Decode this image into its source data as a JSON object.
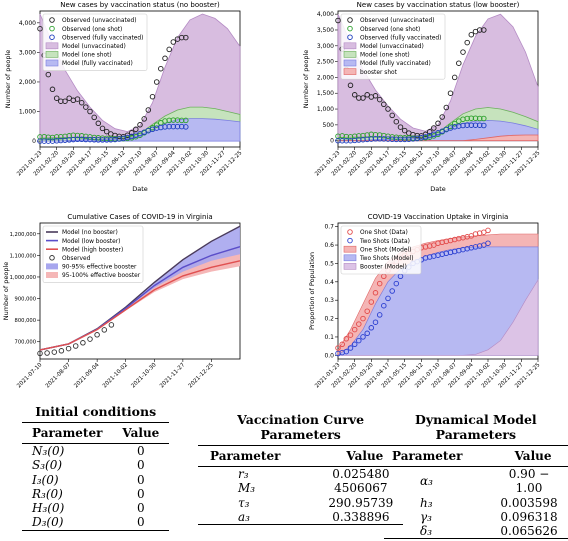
{
  "chart_data": [
    {
      "type": "line",
      "title": "New cases by vaccination status (no booster)",
      "xlabel": "Date",
      "ylabel": "Number of people",
      "ylim": [
        -200,
        4400
      ],
      "yticks": [
        0,
        1000,
        2000,
        3000,
        4000
      ],
      "ytick_labels": [
        "0",
        "1,000",
        "2,000",
        "3,000",
        "4,000"
      ],
      "xticks": [
        "2021-01-23",
        "2021-02-20",
        "2021-03-20",
        "2021-04-17",
        "2021-05-15",
        "2021-06-12",
        "2021-07-10",
        "2021-08-07",
        "2021-09-04",
        "2021-10-02",
        "2021-10-30",
        "2021-11-27",
        "2021-12-25"
      ],
      "legend_position": "top-left",
      "legend": [
        "Observed (unvaccinated)",
        "Observed (one shot)",
        "Observed (fully vaccinated)",
        "Model (unvaccinated)",
        "Model (one shot)",
        "Model (fully vaccinated)"
      ],
      "model_weeks": [
        0,
        3,
        6,
        9,
        12,
        15,
        18,
        21,
        24,
        27,
        30,
        33,
        36,
        39,
        42,
        45,
        48
      ],
      "model_unvaccinated": [
        4300,
        3300,
        2400,
        1700,
        1150,
        700,
        420,
        320,
        520,
        1300,
        2500,
        3500,
        4100,
        4300,
        4150,
        3800,
        3200
      ],
      "model_one_shot": [
        100,
        110,
        115,
        120,
        120,
        110,
        100,
        110,
        260,
        560,
        850,
        1050,
        1150,
        1150,
        1100,
        1000,
        900
      ],
      "model_fully_vaccinated": [
        0,
        0,
        10,
        30,
        50,
        60,
        65,
        80,
        200,
        400,
        600,
        720,
        760,
        760,
        740,
        700,
        650
      ],
      "obs_weeks": [
        0,
        1,
        2,
        3,
        4,
        5,
        6,
        7,
        8,
        9,
        10,
        11,
        12,
        13,
        14,
        15,
        16,
        17,
        18,
        19,
        20,
        21,
        22,
        23,
        24,
        25,
        26,
        27,
        28,
        29,
        30,
        31,
        32,
        33,
        34,
        35
      ],
      "obs_unvaccinated": [
        3800,
        2900,
        2250,
        1750,
        1450,
        1350,
        1350,
        1450,
        1380,
        1420,
        1300,
        1150,
        1000,
        800,
        600,
        430,
        320,
        240,
        190,
        160,
        150,
        200,
        280,
        400,
        550,
        750,
        1050,
        1500,
        2000,
        2450,
        2800,
        3100,
        3350,
        3450,
        3500,
        3500
      ],
      "obs_one_shot": [
        140,
        150,
        130,
        120,
        140,
        150,
        160,
        180,
        200,
        190,
        180,
        160,
        140,
        120,
        110,
        100,
        90,
        90,
        80,
        80,
        80,
        90,
        110,
        150,
        200,
        280,
        360,
        450,
        540,
        620,
        680,
        700,
        710,
        710,
        700,
        700
      ],
      "obs_fully_vaccinated": [
        0,
        0,
        0,
        0,
        10,
        20,
        30,
        40,
        50,
        60,
        60,
        55,
        50,
        45,
        40,
        40,
        40,
        45,
        55,
        70,
        90,
        120,
        160,
        200,
        250,
        300,
        350,
        400,
        440,
        460,
        480,
        490,
        490,
        490,
        490,
        480
      ]
    },
    {
      "type": "line",
      "title": "New cases by vaccination status (low booster)",
      "xlabel": "Date",
      "ylabel": "Number of people",
      "ylim": [
        -200,
        4100
      ],
      "yticks": [
        0,
        500,
        1000,
        1500,
        2000,
        2500,
        3000,
        3500,
        4000
      ],
      "ytick_labels": [
        "0",
        "500",
        "1,000",
        "1,500",
        "2,000",
        "2,500",
        "3,000",
        "3,500",
        "4,000"
      ],
      "xticks": [
        "2021-01-23",
        "2021-02-20",
        "2021-03-20",
        "2021-04-17",
        "2021-05-15",
        "2021-06-12",
        "2021-07-10",
        "2021-08-07",
        "2021-09-04",
        "2021-10-02",
        "2021-10-30",
        "2021-11-27",
        "2021-12-25"
      ],
      "legend_position": "top-left",
      "legend": [
        "Observed (unvaccinated)",
        "Observed (one shot)",
        "Observed (fully vaccinated)",
        "Model (unvaccinated)",
        "Model (one shot)",
        "Model (fully vaccinated)",
        "booster shot"
      ],
      "model_weeks": [
        0,
        3,
        6,
        9,
        12,
        15,
        18,
        21,
        24,
        27,
        30,
        33,
        36,
        39,
        42,
        45,
        48
      ],
      "model_unvaccinated": [
        4000,
        3100,
        2250,
        1600,
        1100,
        680,
        400,
        300,
        500,
        1250,
        2400,
        3300,
        3850,
        4000,
        3600,
        2800,
        1700
      ],
      "model_one_shot": [
        100,
        110,
        115,
        120,
        120,
        110,
        100,
        110,
        260,
        560,
        850,
        1000,
        1050,
        1000,
        900,
        760,
        600
      ],
      "model_fully_vaccinated": [
        0,
        0,
        10,
        30,
        50,
        60,
        65,
        80,
        200,
        400,
        550,
        620,
        640,
        620,
        560,
        470,
        360
      ],
      "model_booster": [
        0,
        0,
        0,
        0,
        0,
        0,
        0,
        0,
        0,
        0,
        0,
        40,
        90,
        140,
        170,
        180,
        180
      ],
      "obs_weeks": [
        0,
        1,
        2,
        3,
        4,
        5,
        6,
        7,
        8,
        9,
        10,
        11,
        12,
        13,
        14,
        15,
        16,
        17,
        18,
        19,
        20,
        21,
        22,
        23,
        24,
        25,
        26,
        27,
        28,
        29,
        30,
        31,
        32,
        33,
        34,
        35
      ],
      "obs_unvaccinated": [
        3800,
        2900,
        2250,
        1750,
        1450,
        1350,
        1350,
        1450,
        1380,
        1420,
        1300,
        1150,
        1000,
        800,
        600,
        430,
        320,
        240,
        190,
        160,
        150,
        200,
        280,
        400,
        550,
        750,
        1050,
        1500,
        2000,
        2450,
        2800,
        3100,
        3350,
        3450,
        3500,
        3500
      ],
      "obs_one_shot": [
        140,
        150,
        130,
        120,
        140,
        150,
        160,
        180,
        200,
        190,
        180,
        160,
        140,
        120,
        110,
        100,
        90,
        90,
        80,
        80,
        80,
        90,
        110,
        150,
        200,
        280,
        360,
        450,
        540,
        620,
        680,
        700,
        710,
        710,
        700,
        700
      ],
      "obs_fully_vaccinated": [
        0,
        0,
        0,
        0,
        10,
        20,
        30,
        40,
        50,
        60,
        60,
        55,
        50,
        45,
        40,
        40,
        40,
        45,
        55,
        70,
        90,
        120,
        160,
        200,
        250,
        300,
        350,
        400,
        440,
        460,
        480,
        490,
        490,
        490,
        490,
        480
      ]
    },
    {
      "type": "line",
      "title": "Cumulative Cases of COVID-19 in Virginia",
      "xlabel": "",
      "ylabel": "Number of people",
      "ylim": [
        620000,
        1250000
      ],
      "yticks": [
        700000,
        800000,
        900000,
        1000000,
        1100000,
        1200000
      ],
      "ytick_labels": [
        "700,000",
        "800,000",
        "900,000",
        "1,000,000",
        "1,100,000",
        "1,200,000"
      ],
      "xticks": [
        "2021-07-10",
        "2021-08-07",
        "2021-09-04",
        "2021-10-02",
        "2021-10-30",
        "2021-11-27",
        "2021-12-25"
      ],
      "legend_position": "top-left",
      "legend": [
        "Model (no booster)",
        "Model (low booster)",
        "Model (high booster)",
        "Observed",
        "90-95% effective booster",
        "95-100% effective booster"
      ],
      "weeks": [
        0,
        4,
        8,
        12,
        16,
        20,
        24,
        28
      ],
      "model_no_booster": [
        662000,
        690000,
        760000,
        860000,
        975000,
        1080000,
        1165000,
        1235000
      ],
      "model_low_booster": [
        662000,
        690000,
        758000,
        855000,
        960000,
        1045000,
        1100000,
        1140000
      ],
      "model_high_booster": [
        662000,
        690000,
        756000,
        848000,
        940000,
        1005000,
        1045000,
        1075000
      ],
      "band_90_95_low": [
        662000,
        690000,
        757000,
        852000,
        950000,
        1025000,
        1075000,
        1105000
      ],
      "band_95_100_low": [
        662000,
        689000,
        754000,
        844000,
        930000,
        990000,
        1025000,
        1050000
      ],
      "obs_weeks": [
        0,
        1,
        2,
        3,
        4,
        5,
        6,
        7,
        8,
        9,
        10
      ],
      "observed": [
        646000,
        648000,
        652000,
        658000,
        668000,
        680000,
        695000,
        712000,
        732000,
        755000,
        778000
      ]
    },
    {
      "type": "line",
      "title": "COVID-19 Vaccination Uptake in Virginia",
      "xlabel": "",
      "ylabel": "Proportion of Population",
      "ylim": [
        -0.02,
        0.72
      ],
      "yticks": [
        0.0,
        0.1,
        0.2,
        0.3,
        0.4,
        0.5,
        0.6,
        0.7
      ],
      "ytick_labels": [
        "0.0",
        "0.1",
        "0.2",
        "0.3",
        "0.4",
        "0.5",
        "0.6",
        "0.7"
      ],
      "xticks": [
        "2021-01-23",
        "2021-02-20",
        "2021-03-20",
        "2021-04-17",
        "2021-05-15",
        "2021-06-12",
        "2021-07-10",
        "2021-08-07",
        "2021-09-04",
        "2021-10-02",
        "2021-10-30",
        "2021-11-27",
        "2021-12-25"
      ],
      "legend_position": "top-left",
      "legend": [
        "One Shot (Data)",
        "Two Shots (Data)",
        "One Shot (Model)",
        "Two Shots (Model)",
        "Booster (Model)"
      ],
      "model_weeks": [
        0,
        3,
        6,
        9,
        12,
        15,
        18,
        21,
        24,
        27,
        30,
        33,
        36,
        39,
        42,
        45,
        48
      ],
      "model_one_shot": [
        0.03,
        0.14,
        0.28,
        0.42,
        0.51,
        0.56,
        0.59,
        0.61,
        0.625,
        0.635,
        0.645,
        0.65,
        0.655,
        0.66,
        0.66,
        0.66,
        0.66
      ],
      "model_two_shots": [
        0.0,
        0.05,
        0.14,
        0.28,
        0.4,
        0.47,
        0.51,
        0.54,
        0.56,
        0.575,
        0.585,
        0.59,
        0.59,
        0.59,
        0.59,
        0.59,
        0.59
      ],
      "model_booster": [
        0,
        0,
        0,
        0,
        0,
        0,
        0,
        0,
        0,
        0,
        0,
        0.005,
        0.03,
        0.08,
        0.18,
        0.3,
        0.41
      ],
      "obs_weeks": [
        0,
        1,
        2,
        3,
        4,
        5,
        6,
        7,
        8,
        9,
        10,
        11,
        12,
        13,
        14,
        15,
        16,
        17,
        18,
        19,
        20,
        21,
        22,
        23,
        24,
        25,
        26,
        27,
        28,
        29,
        30,
        31,
        32,
        33,
        34,
        35,
        36
      ],
      "obs_one_shot": [
        0.04,
        0.06,
        0.09,
        0.11,
        0.14,
        0.17,
        0.2,
        0.24,
        0.29,
        0.34,
        0.39,
        0.43,
        0.46,
        0.49,
        0.51,
        0.53,
        0.545,
        0.555,
        0.565,
        0.575,
        0.585,
        0.59,
        0.595,
        0.6,
        0.61,
        0.615,
        0.62,
        0.625,
        0.63,
        0.635,
        0.64,
        0.645,
        0.65,
        0.66,
        0.665,
        0.67,
        0.68
      ],
      "obs_two_shots": [
        0.01,
        0.015,
        0.02,
        0.04,
        0.06,
        0.08,
        0.1,
        0.12,
        0.15,
        0.18,
        0.22,
        0.27,
        0.31,
        0.35,
        0.39,
        0.43,
        0.46,
        0.48,
        0.5,
        0.51,
        0.52,
        0.53,
        0.535,
        0.54,
        0.545,
        0.55,
        0.555,
        0.56,
        0.565,
        0.57,
        0.575,
        0.58,
        0.585,
        0.59,
        0.595,
        0.6,
        0.61
      ]
    }
  ],
  "tables": {
    "initial": {
      "caption": "Initial conditions",
      "headers": [
        "Parameter",
        "Value"
      ],
      "rows": [
        [
          "N₃(0)",
          "0"
        ],
        [
          "S₃(0)",
          "0"
        ],
        [
          "I₃(0)",
          "0"
        ],
        [
          "R₃(0)",
          "0"
        ],
        [
          "H₃(0)",
          "0"
        ],
        [
          "D₃(0)",
          "0"
        ]
      ]
    },
    "vaccination": {
      "caption_line1": "Vaccination Curve",
      "caption_line2": "Parameters",
      "headers": [
        "Parameter",
        "Value"
      ],
      "rows": [
        [
          "r₃",
          "0.025480"
        ],
        [
          "M₃",
          "4506067"
        ],
        [
          "τ₃",
          "290.95739"
        ],
        [
          "a₃",
          "0.338896"
        ]
      ]
    },
    "dynamical": {
      "caption_line1": "Dynamical Model",
      "caption_line2": "Parameters",
      "headers": [
        "Parameter",
        "Value"
      ],
      "rows": [
        [
          "α₃",
          "0.90 − 1.00"
        ],
        [
          "h₃",
          "0.003598"
        ],
        [
          "γ₃",
          "0.096318"
        ],
        [
          "δ₃",
          "0.065626"
        ]
      ]
    }
  },
  "colors": {
    "unvaccinated_fill": "#d8bde0",
    "unvaccinated_line": "#b48bc4",
    "one_shot_fill": "#c6e3bd",
    "one_shot_line": "#6cb05d",
    "fully_fill": "#b7b9f2",
    "fully_line": "#7a7de0",
    "booster_fill": "#f4b5b5",
    "booster_line": "#e06666",
    "obs_unvaccinated": "#222222",
    "obs_one_shot": "#2ca02c",
    "obs_fully": "#1f3fbf",
    "no_booster_line": "#4a3b5c",
    "low_booster_line": "#5a4ec9",
    "high_booster_line": "#e05050",
    "band_90_95": "#a7a6ee",
    "band_95_100": "#f5b7b7",
    "uptake_one_data": "#e24a4a",
    "uptake_two_data": "#2b3fd0",
    "booster_model_fill": "#dcc3e6"
  }
}
